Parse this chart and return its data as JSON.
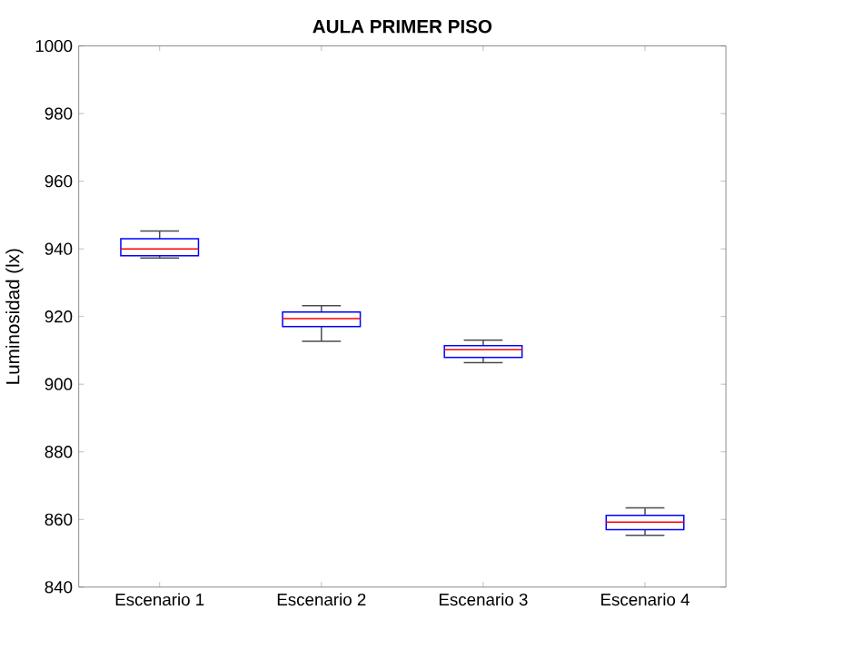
{
  "chart_data": {
    "type": "box",
    "title": "AULA PRIMER PISO",
    "ylabel": "Luminosidad (lx)",
    "categories": [
      "Escenario 1",
      "Escenario 2",
      "Escenario 3",
      "Escenario 4"
    ],
    "boxes": [
      {
        "low": 937.3,
        "q1": 938,
        "median": 940,
        "q3": 943,
        "high": 945.3
      },
      {
        "low": 912.7,
        "q1": 917,
        "median": 919.4,
        "q3": 921.3,
        "high": 923.2
      },
      {
        "low": 906.4,
        "q1": 907.9,
        "median": 910.2,
        "q3": 911.4,
        "high": 913
      },
      {
        "low": 855.3,
        "q1": 857,
        "median": 859.2,
        "q3": 861.2,
        "high": 863.4
      }
    ],
    "color": "#0000ff",
    "ylim": [
      840,
      1000
    ],
    "yticks": [
      840,
      860,
      880,
      900,
      920,
      940,
      960,
      980,
      1000
    ],
    "grid": false
  }
}
